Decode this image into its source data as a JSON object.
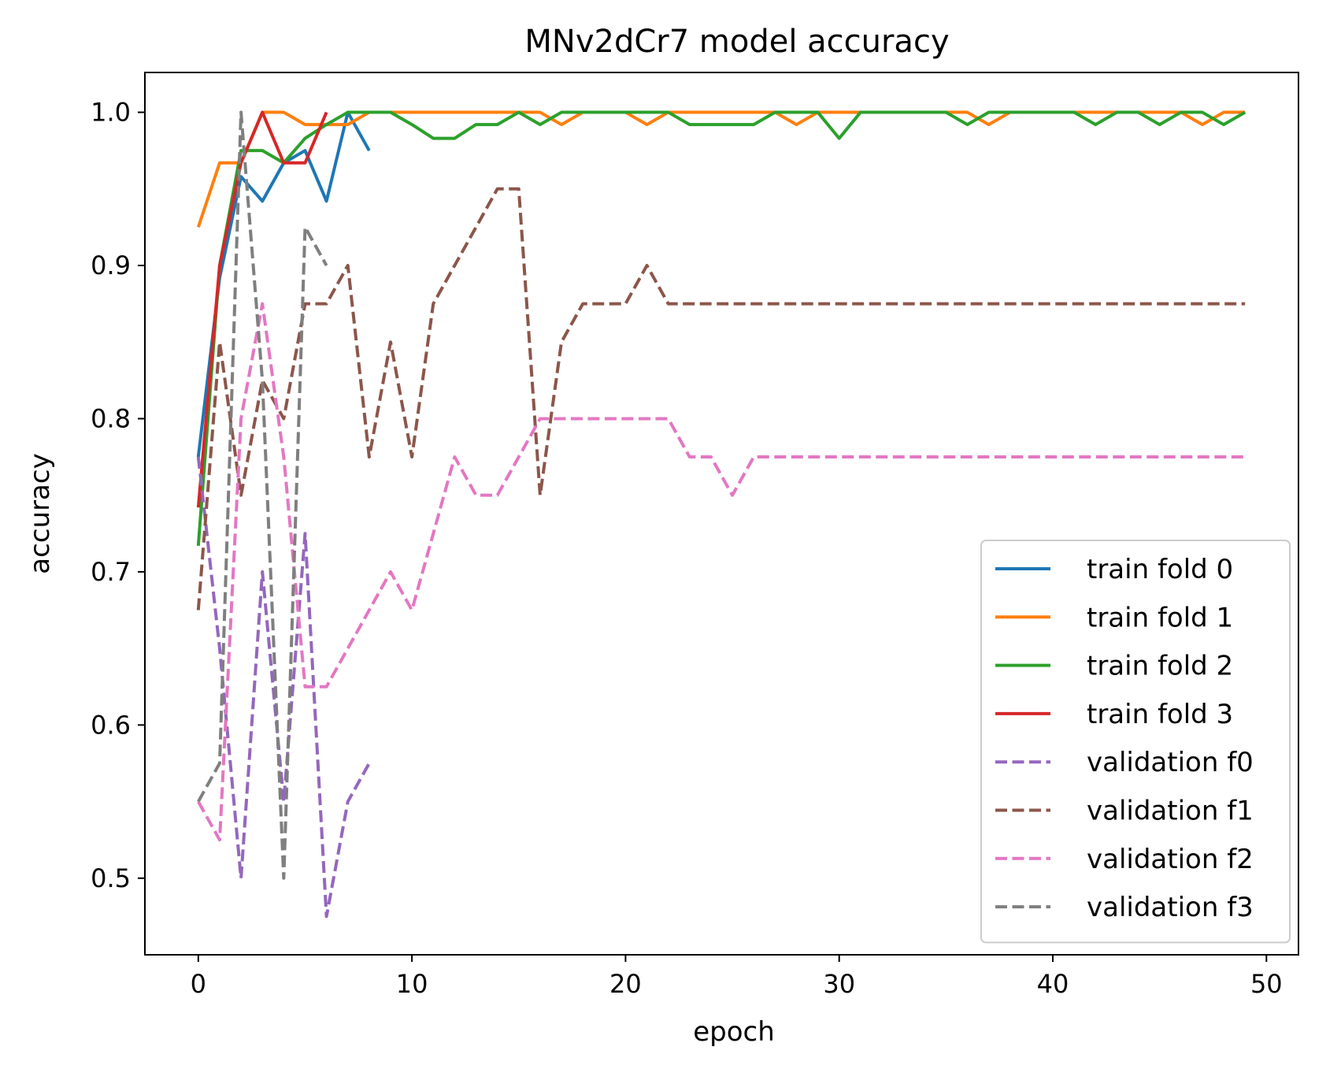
{
  "chart_data": {
    "type": "line",
    "title": "MNv2dCr7 model accuracy",
    "xlabel": "epoch",
    "ylabel": "accuracy",
    "xlim": [
      -2.5,
      51.5
    ],
    "ylim": [
      0.45,
      1.026
    ],
    "xticks": [
      0,
      10,
      20,
      30,
      40,
      50
    ],
    "xtick_labels": [
      "0",
      "10",
      "20",
      "30",
      "40",
      "50"
    ],
    "yticks": [
      0.5,
      0.6,
      0.7,
      0.8,
      0.9,
      1.0
    ],
    "ytick_labels": [
      "0.5",
      "0.6",
      "0.7",
      "0.8",
      "0.9",
      "1.0"
    ],
    "grid": false,
    "legend_position": "lower-right",
    "series": [
      {
        "name": "train fold 0",
        "color": "#1f77b4",
        "dash": "solid",
        "x": [
          0,
          1,
          2,
          3,
          4,
          5,
          6,
          7,
          8
        ],
        "y": [
          0.775,
          0.892,
          0.958,
          0.942,
          0.967,
          0.975,
          0.942,
          1.0,
          0.975
        ]
      },
      {
        "name": "train fold 1",
        "color": "#ff7f0e",
        "dash": "solid",
        "x": [
          0,
          1,
          2,
          3,
          4,
          5,
          6,
          7,
          8,
          9,
          10,
          11,
          12,
          13,
          14,
          15,
          16,
          17,
          18,
          19,
          20,
          21,
          22,
          23,
          24,
          25,
          26,
          27,
          28,
          29,
          30,
          31,
          32,
          33,
          34,
          35,
          36,
          37,
          38,
          39,
          40,
          41,
          42,
          43,
          44,
          45,
          46,
          47,
          48,
          49
        ],
        "y": [
          0.925,
          0.967,
          0.967,
          1.0,
          1.0,
          0.992,
          0.992,
          0.992,
          1.0,
          1.0,
          1.0,
          1.0,
          1.0,
          1.0,
          1.0,
          1.0,
          1.0,
          0.992,
          1.0,
          1.0,
          1.0,
          0.992,
          1.0,
          1.0,
          1.0,
          1.0,
          1.0,
          1.0,
          0.992,
          1.0,
          1.0,
          1.0,
          1.0,
          1.0,
          1.0,
          1.0,
          1.0,
          0.992,
          1.0,
          1.0,
          1.0,
          1.0,
          1.0,
          1.0,
          1.0,
          1.0,
          1.0,
          0.992,
          1.0,
          1.0
        ]
      },
      {
        "name": "train fold 2",
        "color": "#2ca02c",
        "dash": "solid",
        "x": [
          0,
          1,
          2,
          3,
          4,
          5,
          6,
          7,
          8,
          9,
          10,
          11,
          12,
          13,
          14,
          15,
          16,
          17,
          18,
          19,
          20,
          21,
          22,
          23,
          24,
          25,
          26,
          27,
          28,
          29,
          30,
          31,
          32,
          33,
          34,
          35,
          36,
          37,
          38,
          39,
          40,
          41,
          42,
          43,
          44,
          45,
          46,
          47,
          48,
          49
        ],
        "y": [
          0.717,
          0.9,
          0.975,
          0.975,
          0.967,
          0.983,
          0.992,
          1.0,
          1.0,
          1.0,
          0.992,
          0.983,
          0.983,
          0.992,
          0.992,
          1.0,
          0.992,
          1.0,
          1.0,
          1.0,
          1.0,
          1.0,
          1.0,
          0.992,
          0.992,
          0.992,
          0.992,
          1.0,
          1.0,
          1.0,
          0.983,
          1.0,
          1.0,
          1.0,
          1.0,
          1.0,
          0.992,
          1.0,
          1.0,
          1.0,
          1.0,
          1.0,
          0.992,
          1.0,
          1.0,
          0.992,
          1.0,
          1.0,
          0.992,
          1.0
        ]
      },
      {
        "name": "train fold 3",
        "color": "#d62728",
        "dash": "solid",
        "x": [
          0,
          1,
          2,
          3,
          4,
          5,
          6
        ],
        "y": [
          0.742,
          0.9,
          0.967,
          1.0,
          0.967,
          0.967,
          1.0
        ]
      },
      {
        "name": "validation f0",
        "color": "#9467bd",
        "dash": "dashed",
        "x": [
          0,
          1,
          2,
          3,
          4,
          5,
          6,
          7,
          8
        ],
        "y": [
          0.775,
          0.65,
          0.5,
          0.7,
          0.55,
          0.725,
          0.475,
          0.55,
          0.575
        ]
      },
      {
        "name": "validation f1",
        "color": "#8c564b",
        "dash": "dashed",
        "x": [
          0,
          1,
          2,
          3,
          4,
          5,
          6,
          7,
          8,
          9,
          10,
          11,
          12,
          13,
          14,
          15,
          16,
          17,
          18,
          19,
          20,
          21,
          22,
          23,
          24,
          25,
          26,
          27,
          28,
          29,
          30,
          31,
          32,
          33,
          34,
          35,
          36,
          37,
          38,
          39,
          40,
          41,
          42,
          43,
          44,
          45,
          46,
          47,
          48,
          49
        ],
        "y": [
          0.675,
          0.85,
          0.75,
          0.825,
          0.8,
          0.875,
          0.875,
          0.9,
          0.775,
          0.85,
          0.775,
          0.875,
          0.9,
          0.925,
          0.95,
          0.95,
          0.75,
          0.85,
          0.875,
          0.875,
          0.875,
          0.9,
          0.875,
          0.875,
          0.875,
          0.875,
          0.875,
          0.875,
          0.875,
          0.875,
          0.875,
          0.875,
          0.875,
          0.875,
          0.875,
          0.875,
          0.875,
          0.875,
          0.875,
          0.875,
          0.875,
          0.875,
          0.875,
          0.875,
          0.875,
          0.875,
          0.875,
          0.875,
          0.875,
          0.875
        ]
      },
      {
        "name": "validation f2",
        "color": "#e377c2",
        "dash": "dashed",
        "x": [
          0,
          1,
          2,
          3,
          4,
          5,
          6,
          7,
          8,
          9,
          10,
          11,
          12,
          13,
          14,
          15,
          16,
          17,
          18,
          19,
          20,
          21,
          22,
          23,
          24,
          25,
          26,
          27,
          28,
          29,
          30,
          31,
          32,
          33,
          34,
          35,
          36,
          37,
          38,
          39,
          40,
          41,
          42,
          43,
          44,
          45,
          46,
          47,
          48,
          49
        ],
        "y": [
          0.55,
          0.525,
          0.8,
          0.875,
          0.775,
          0.625,
          0.625,
          0.65,
          0.675,
          0.7,
          0.675,
          0.725,
          0.775,
          0.75,
          0.75,
          0.775,
          0.8,
          0.8,
          0.8,
          0.8,
          0.8,
          0.8,
          0.8,
          0.775,
          0.775,
          0.75,
          0.775,
          0.775,
          0.775,
          0.775,
          0.775,
          0.775,
          0.775,
          0.775,
          0.775,
          0.775,
          0.775,
          0.775,
          0.775,
          0.775,
          0.775,
          0.775,
          0.775,
          0.775,
          0.775,
          0.775,
          0.775,
          0.775,
          0.775,
          0.775
        ]
      },
      {
        "name": "validation f3",
        "color": "#7f7f7f",
        "dash": "dashed",
        "x": [
          0,
          1,
          2,
          3,
          4,
          5,
          6
        ],
        "y": [
          0.55,
          0.575,
          1.0,
          0.825,
          0.5,
          0.925,
          0.9
        ]
      }
    ]
  }
}
